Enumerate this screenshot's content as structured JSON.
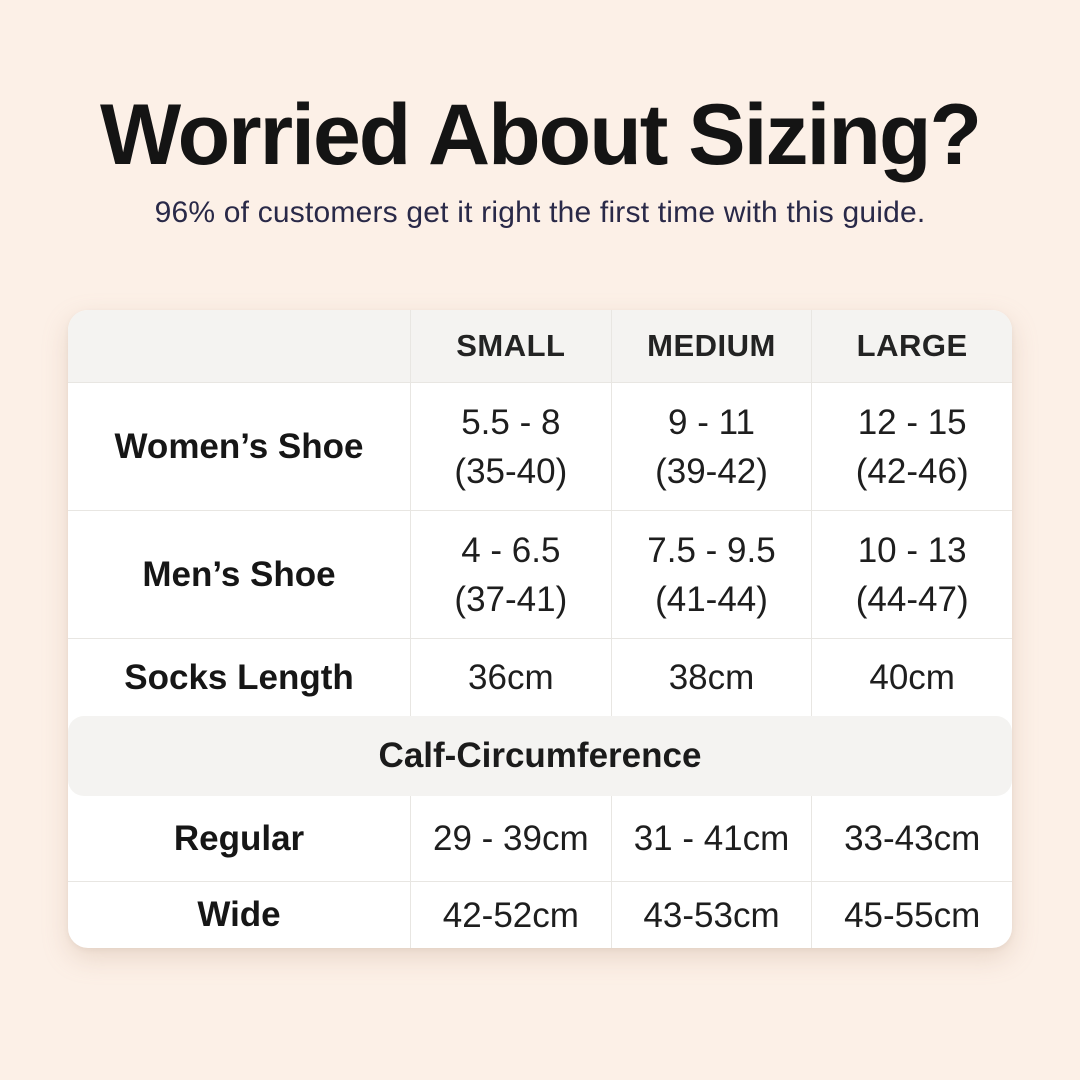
{
  "header": {
    "title": "Worried About Sizing?",
    "subtitle": "96% of customers get it right the first time with this guide."
  },
  "colors": {
    "background": "#fcf0e7",
    "panel_gray": "#f4f3f1",
    "divider": "#e8e6e2",
    "title_text": "#141414",
    "subtitle_text": "#292948",
    "body_text": "#1e1e1e"
  },
  "size_chart": {
    "columns": [
      "",
      "SMALL",
      "MEDIUM",
      "LARGE"
    ],
    "rows": [
      {
        "label": "Women’s Shoe",
        "small": [
          "5.5 - 8",
          "(35-40)"
        ],
        "medium": [
          "9 - 11",
          "(39-42)"
        ],
        "large": [
          "12 - 15",
          "(42-46)"
        ]
      },
      {
        "label": "Men’s Shoe",
        "small": [
          "4 - 6.5",
          "(37-41)"
        ],
        "medium": [
          "7.5 - 9.5",
          "(41-44)"
        ],
        "large": [
          "10 - 13",
          "(44-47)"
        ]
      },
      {
        "label": "Socks Length",
        "small": "36cm",
        "medium": "38cm",
        "large": "40cm"
      }
    ],
    "section_header": "Calf-Circumference",
    "calf_rows": [
      {
        "label": "Regular",
        "small": "29 - 39cm",
        "medium": "31 - 41cm",
        "large": "33-43cm"
      },
      {
        "label": "Wide",
        "small": "42-52cm",
        "medium": "43-53cm",
        "large": "45-55cm"
      }
    ]
  },
  "chart_data": {
    "type": "table",
    "title": "Worried About Sizing?",
    "subtitle": "96% of customers get it right the first time with this guide.",
    "columns": [
      "",
      "SMALL",
      "MEDIUM",
      "LARGE"
    ],
    "rows": [
      [
        "Women’s Shoe",
        "5.5 - 8 (35-40)",
        "9 - 11 (39-42)",
        "12 - 15 (42-46)"
      ],
      [
        "Men’s Shoe",
        "4 - 6.5 (37-41)",
        "7.5 - 9.5 (41-44)",
        "10 - 13 (44-47)"
      ],
      [
        "Socks Length",
        "36cm",
        "38cm",
        "40cm"
      ],
      [
        "Calf-Circumference",
        "",
        "",
        ""
      ],
      [
        "Regular",
        "29 - 39cm",
        "31 - 41cm",
        "33-43cm"
      ],
      [
        "Wide",
        "42-52cm",
        "43-53cm",
        "45-55cm"
      ]
    ]
  }
}
